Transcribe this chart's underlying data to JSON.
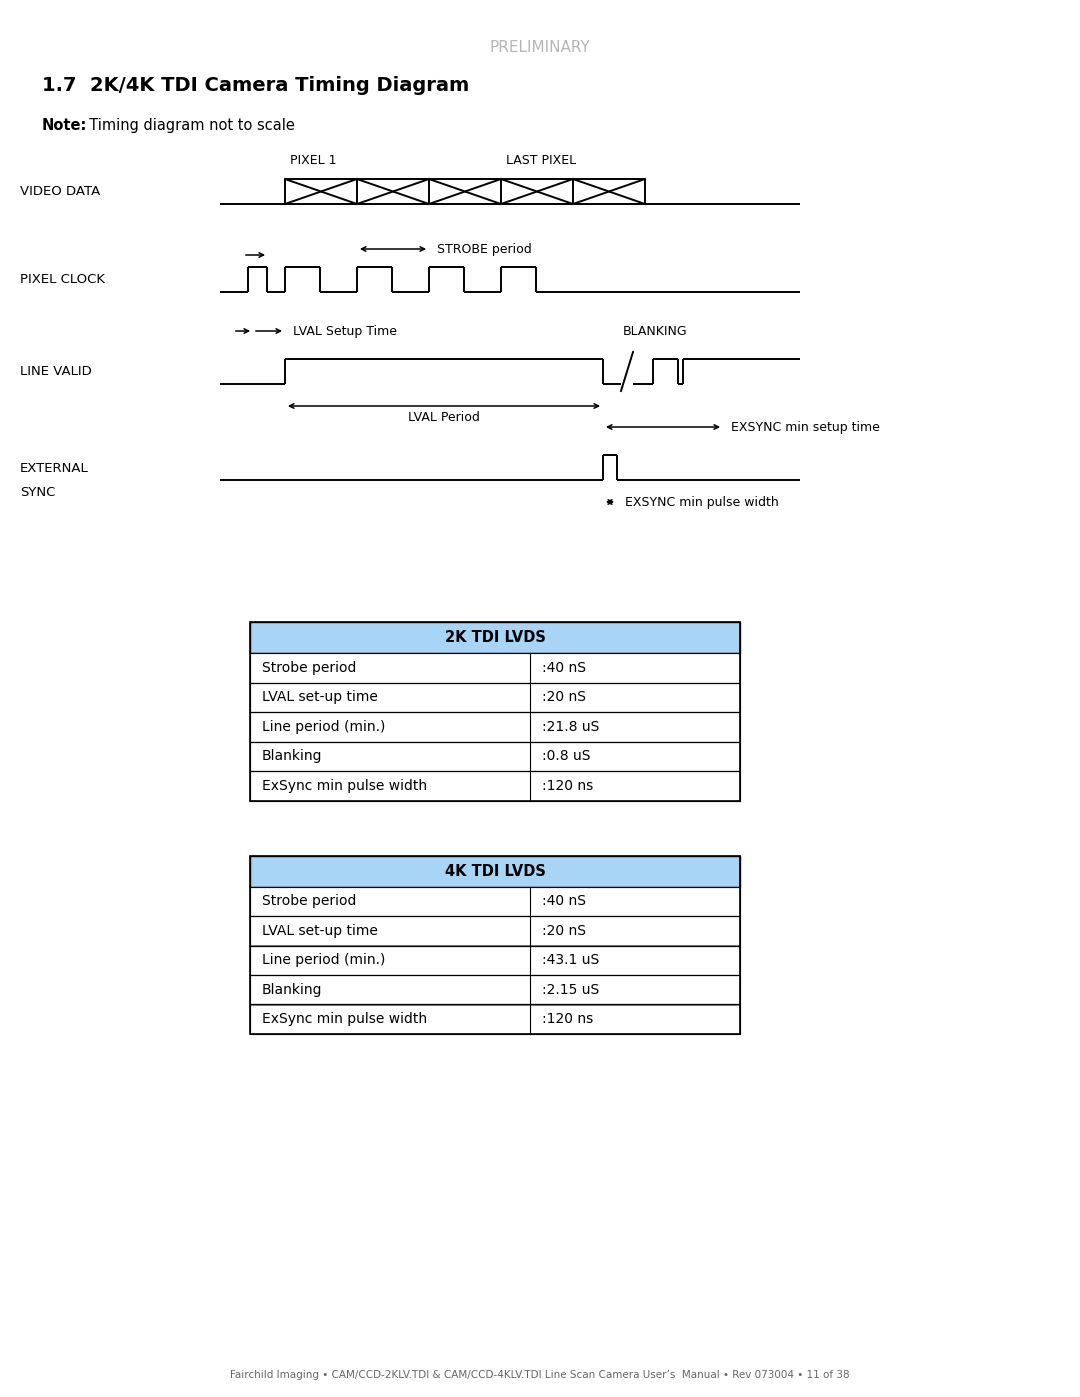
{
  "title_preliminary": "PRELIMINARY",
  "title_main": "1.7  2K/4K TDI Camera Timing Diagram",
  "note_bold": "Note:",
  "note_rest": "  Timing diagram not to scale",
  "background_color": "#ffffff",
  "text_color": "#000000",
  "preliminary_color": "#aaaaaa",
  "table1_title": "2K TDI LVDS",
  "table2_title": "4K TDI LVDS",
  "table_header_color": "#a8d4f5",
  "table_rows_2k": [
    [
      "Strobe period",
      ":40 nS"
    ],
    [
      "LVAL set-up time",
      ":20 nS"
    ],
    [
      "Line period (min.)",
      ":21.8 uS"
    ],
    [
      "Blanking",
      ":0.8 uS"
    ],
    [
      "ExSync min pulse width",
      ":120 ns"
    ]
  ],
  "table_rows_4k": [
    [
      "Strobe period",
      ":40 nS"
    ],
    [
      "LVAL set-up time",
      ":20 nS"
    ],
    [
      "Line period (min.)",
      ":43.1 uS"
    ],
    [
      "Blanking",
      ":2.15 uS"
    ],
    [
      "ExSync min pulse width",
      ":120 ns"
    ]
  ],
  "footer_text": "Fairchild Imaging • CAM/CCD-2KLV.TDI & CAM/CCD-4KLV.TDI Line Scan Camera User’s  Manual • Rev 073004 • 11 of 38",
  "pixel1_label": "PIXEL 1",
  "lastpixel_label": "LAST PIXEL",
  "strobe_label": "STROBE period",
  "lval_setup_label": "LVAL Setup Time",
  "blanking_label": "BLANKING",
  "lval_period_label": "LVAL Period",
  "exsync_setup_label": "EXSYNC min setup time",
  "exsync_pulse_label": "EXSYNC min pulse width",
  "vid_label": "VIDEO DATA",
  "pck_label": "PIXEL CLOCK",
  "lv_label": "LINE VALID",
  "ext_label1": "EXTERNAL",
  "ext_label2": "SYNC"
}
